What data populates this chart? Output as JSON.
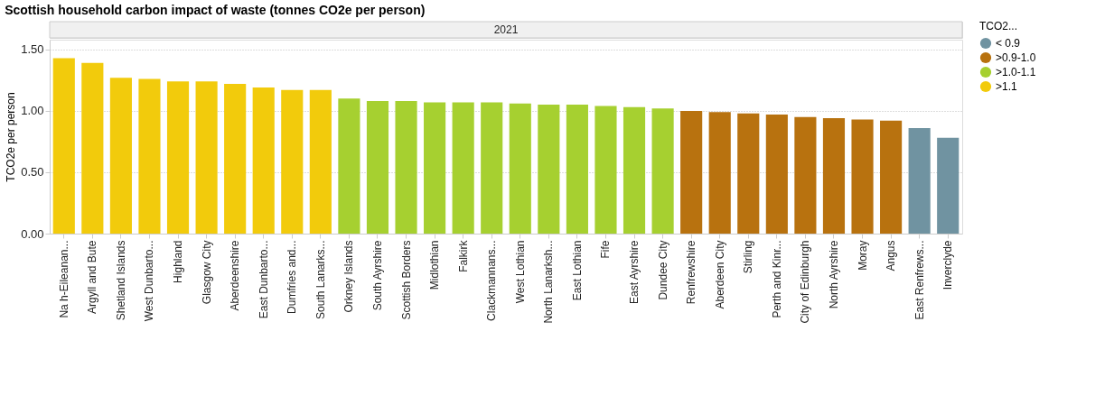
{
  "chart_data": {
    "type": "bar",
    "title": "Scottish household carbon impact of waste (tonnes CO2e per person)",
    "ylabel": "TCO2e per person",
    "legend_title": "TCO2...",
    "annotations": [
      "2021"
    ],
    "categories": [
      "Na h-Eileanan...",
      "Argyll and Bute",
      "Shetland Islands",
      "West Dunbarto...",
      "Highland",
      "Glasgow City",
      "Aberdeenshire",
      "East Dunbarto...",
      "Dumfries and...",
      "South Lanarks...",
      "Orkney Islands",
      "South Ayrshire",
      "Scottish Borders",
      "Midlothian",
      "Falkirk",
      "Clackmannans...",
      "West Lothian",
      "North Lanarksh...",
      "East Lothian",
      "Fife",
      "East Ayrshire",
      "Dundee City",
      "Renfrewshire",
      "Aberdeen City",
      "Stirling",
      "Perth and Kinr...",
      "City of Edinburgh",
      "North Ayrshire",
      "Moray",
      "Angus",
      "East Renfrews...",
      "Inverclyde"
    ],
    "series": [
      {
        "name": "< 0.9",
        "color": "#7093a1",
        "values": [
          null,
          null,
          null,
          null,
          null,
          null,
          null,
          null,
          null,
          null,
          null,
          null,
          null,
          null,
          null,
          null,
          null,
          null,
          null,
          null,
          null,
          null,
          null,
          null,
          null,
          null,
          null,
          null,
          null,
          null,
          0.86,
          0.78
        ]
      },
      {
        "name": ">0.9-1.0",
        "color": "#b8720f",
        "values": [
          null,
          null,
          null,
          null,
          null,
          null,
          null,
          null,
          null,
          null,
          null,
          null,
          null,
          null,
          null,
          null,
          null,
          null,
          null,
          null,
          null,
          null,
          1.0,
          0.99,
          0.98,
          0.97,
          0.95,
          0.94,
          0.93,
          0.92,
          null,
          null
        ]
      },
      {
        "name": ">1.0-1.1",
        "color": "#a6d030",
        "values": [
          null,
          null,
          null,
          null,
          null,
          null,
          null,
          null,
          null,
          null,
          1.1,
          1.08,
          1.08,
          1.07,
          1.07,
          1.07,
          1.06,
          1.05,
          1.05,
          1.04,
          1.03,
          1.02,
          null,
          null,
          null,
          null,
          null,
          null,
          null,
          null,
          null,
          null
        ]
      },
      {
        "name": ">1.1",
        "color": "#f2cb0c",
        "values": [
          1.43,
          1.39,
          1.27,
          1.26,
          1.24,
          1.24,
          1.22,
          1.19,
          1.17,
          1.17,
          null,
          null,
          null,
          null,
          null,
          null,
          null,
          null,
          null,
          null,
          null,
          null,
          null,
          null,
          null,
          null,
          null,
          null,
          null,
          null,
          null,
          null
        ]
      }
    ],
    "ylim": [
      0,
      1.58
    ],
    "yticks": [
      {
        "value": 0,
        "label": "0.00"
      },
      {
        "value": 0.5,
        "label": "0.50"
      },
      {
        "value": 1.0,
        "label": "1.00"
      },
      {
        "value": 1.5,
        "label": "1.50"
      }
    ],
    "grid": "y",
    "legend": "top right"
  }
}
